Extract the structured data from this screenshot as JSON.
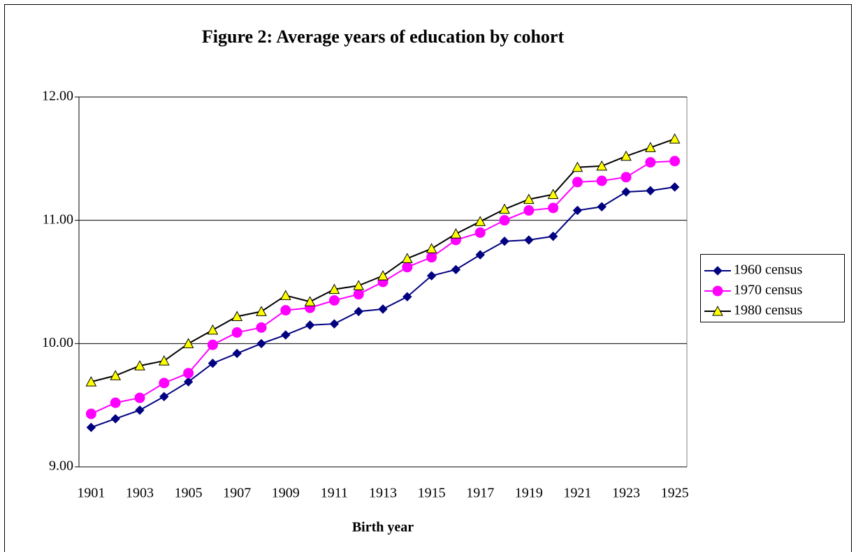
{
  "chart_data": {
    "type": "line",
    "title": "Figure 2: Average years of education by cohort",
    "x_label": "Birth year",
    "categories": [
      1901,
      null,
      1903,
      null,
      1905,
      null,
      1907,
      null,
      1909,
      null,
      1911,
      null,
      1913,
      null,
      1915,
      null,
      1917,
      null,
      1919,
      null,
      1921,
      null,
      1923,
      null,
      1925
    ],
    "series": [
      {
        "name": "1960 census",
        "color": "#000080",
        "marker": "diamond",
        "marker_fill": "#000080",
        "values": [
          9.32,
          9.39,
          9.46,
          9.57,
          9.69,
          9.84,
          9.92,
          10.0,
          10.07,
          10.15,
          10.16,
          10.26,
          10.28,
          10.38,
          10.55,
          10.6,
          10.72,
          10.83,
          10.84,
          10.87,
          11.08,
          11.11,
          11.23,
          11.24,
          11.27
        ]
      },
      {
        "name": "1970 census",
        "color": "#ff00ff",
        "marker": "circle",
        "marker_fill": "#ff00ff",
        "values": [
          9.43,
          9.52,
          9.56,
          9.68,
          9.76,
          9.99,
          10.09,
          10.13,
          10.27,
          10.29,
          10.35,
          10.4,
          10.5,
          10.62,
          10.7,
          10.84,
          10.9,
          11.0,
          11.08,
          11.1,
          11.31,
          11.32,
          11.35,
          11.47,
          11.48
        ]
      },
      {
        "name": "1980 census",
        "color": "#000000",
        "marker": "triangle",
        "marker_fill": "#ffff00",
        "values": [
          9.69,
          9.74,
          9.82,
          9.86,
          10.0,
          10.11,
          10.22,
          10.26,
          10.39,
          10.34,
          10.44,
          10.47,
          10.55,
          10.69,
          10.77,
          10.89,
          10.99,
          11.09,
          11.17,
          11.21,
          11.43,
          11.44,
          11.52,
          11.59,
          11.66
        ]
      }
    ],
    "ylim": [
      9,
      12
    ],
    "yticks": [
      {
        "value": 9,
        "label": "9.00"
      },
      {
        "value": 10,
        "label": "10.00"
      },
      {
        "value": 11,
        "label": "11.00"
      },
      {
        "value": 12,
        "label": "12.00"
      }
    ],
    "grid": true,
    "legend": "right"
  }
}
